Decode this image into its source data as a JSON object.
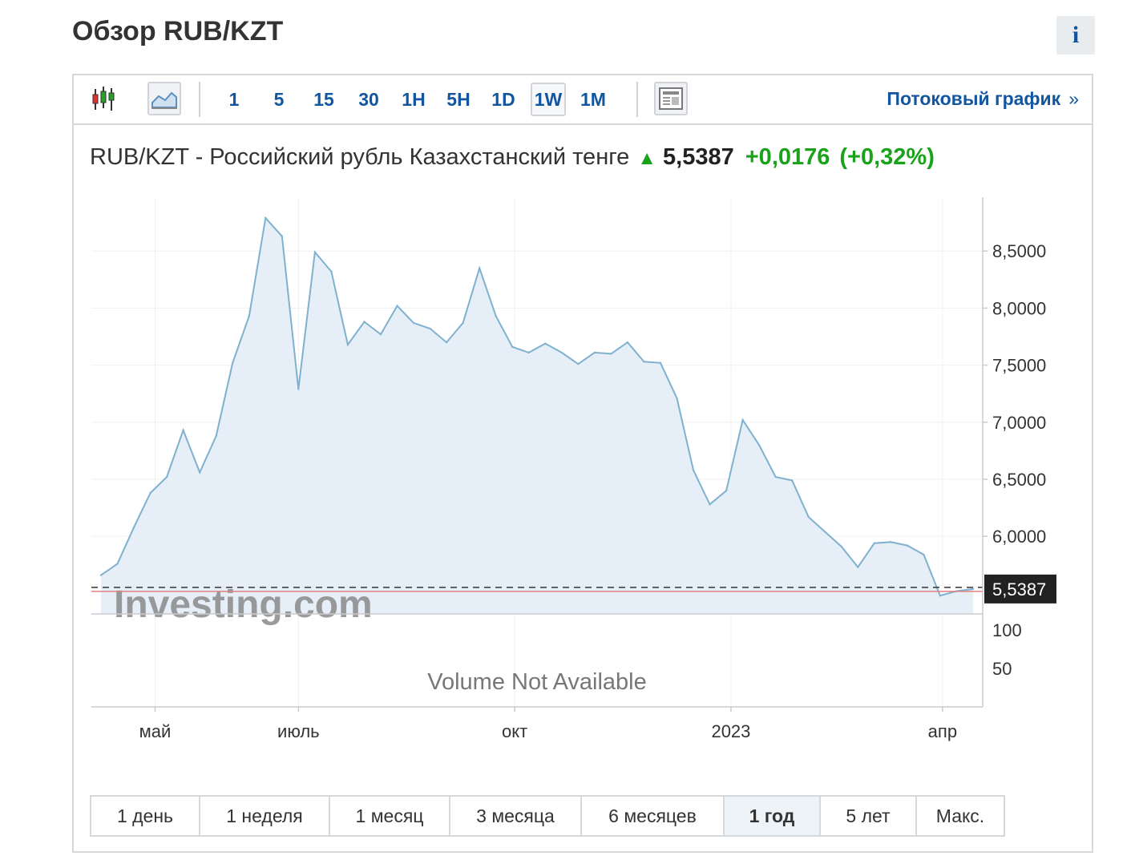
{
  "page": {
    "title": "Обзор RUB/KZT",
    "info_icon": "i"
  },
  "toolbar": {
    "icons": [
      "candlestick-icon",
      "area-chart-icon",
      "news-icon"
    ],
    "timeframes": [
      {
        "label": "1",
        "active": false
      },
      {
        "label": "5",
        "active": false
      },
      {
        "label": "15",
        "active": false
      },
      {
        "label": "30",
        "active": false
      },
      {
        "label": "1H",
        "active": false
      },
      {
        "label": "5H",
        "active": false
      },
      {
        "label": "1D",
        "active": false
      },
      {
        "label": "1W",
        "active": true
      },
      {
        "label": "1M",
        "active": false
      }
    ],
    "stream_link": "Потоковый график",
    "stream_chevron": "»"
  },
  "quote": {
    "name": "RUB/KZT - Российский рубль Казахстанский тенге",
    "direction": "up",
    "last": "5,5387",
    "change": "+0,0176",
    "change_pct": "(+0,32%)",
    "up_color": "#1aa21a"
  },
  "chart_data": {
    "type": "area",
    "title": "",
    "xlabel": "",
    "ylabel": "",
    "x_ticks": [
      "май",
      "июль",
      "окт",
      "2023",
      "апр"
    ],
    "y_ticks": [
      "8,5000",
      "8,0000",
      "7,5000",
      "7,0000",
      "6,5000",
      "6,0000"
    ],
    "ylim": [
      5.32,
      8.93
    ],
    "last_value_label": "5,5387",
    "last_value": 5.5387,
    "line_color": "#7fb1cf",
    "fill_color": "#e6eff7",
    "series": [
      {
        "x": [
          "2022-04-08",
          "2022-04-15",
          "2022-04-22",
          "2022-04-29",
          "2022-05-06",
          "2022-05-13",
          "2022-05-20",
          "2022-05-27",
          "2022-06-03",
          "2022-06-10",
          "2022-06-17",
          "2022-06-24",
          "2022-07-01",
          "2022-07-08",
          "2022-07-15",
          "2022-07-22",
          "2022-07-29",
          "2022-08-05",
          "2022-08-12",
          "2022-08-19",
          "2022-08-26",
          "2022-09-02",
          "2022-09-09",
          "2022-09-16",
          "2022-09-23",
          "2022-09-30",
          "2022-10-07",
          "2022-10-14",
          "2022-10-21",
          "2022-10-28",
          "2022-11-04",
          "2022-11-11",
          "2022-11-18",
          "2022-11-25",
          "2022-12-02",
          "2022-12-09",
          "2022-12-16",
          "2022-12-23",
          "2022-12-30",
          "2023-01-06",
          "2023-01-13",
          "2023-01-20",
          "2023-01-27",
          "2023-02-03",
          "2023-02-10",
          "2023-02-17",
          "2023-02-24",
          "2023-03-03",
          "2023-03-10",
          "2023-03-17",
          "2023-03-24",
          "2023-03-31",
          "2023-04-07",
          "2023-04-14"
        ],
        "values": [
          5.66,
          5.76,
          6.08,
          6.38,
          6.52,
          6.93,
          6.56,
          6.88,
          7.52,
          7.93,
          8.79,
          8.63,
          7.29,
          8.49,
          8.32,
          7.68,
          7.88,
          7.77,
          8.02,
          7.87,
          7.82,
          7.7,
          7.87,
          8.35,
          7.93,
          7.66,
          7.61,
          7.69,
          7.61,
          7.51,
          7.61,
          7.6,
          7.7,
          7.53,
          7.52,
          7.21,
          6.58,
          6.28,
          6.4,
          7.02,
          6.8,
          6.52,
          6.49,
          6.17,
          6.04,
          5.91,
          5.73,
          5.94,
          5.95,
          5.92,
          5.84,
          5.48,
          5.52,
          5.5387
        ]
      }
    ],
    "volume": {
      "y_ticks": [
        "100",
        "50"
      ],
      "message": "Volume Not Available"
    },
    "watermark": "Investing.com"
  },
  "ranges": [
    {
      "label": "1 день",
      "active": false
    },
    {
      "label": "1 неделя",
      "active": false
    },
    {
      "label": "1 месяц",
      "active": false
    },
    {
      "label": "3 месяца",
      "active": false
    },
    {
      "label": "6 месяцев",
      "active": false
    },
    {
      "label": "1 год",
      "active": true
    },
    {
      "label": "5 лет",
      "active": false
    },
    {
      "label": "Макс.",
      "active": false
    }
  ]
}
